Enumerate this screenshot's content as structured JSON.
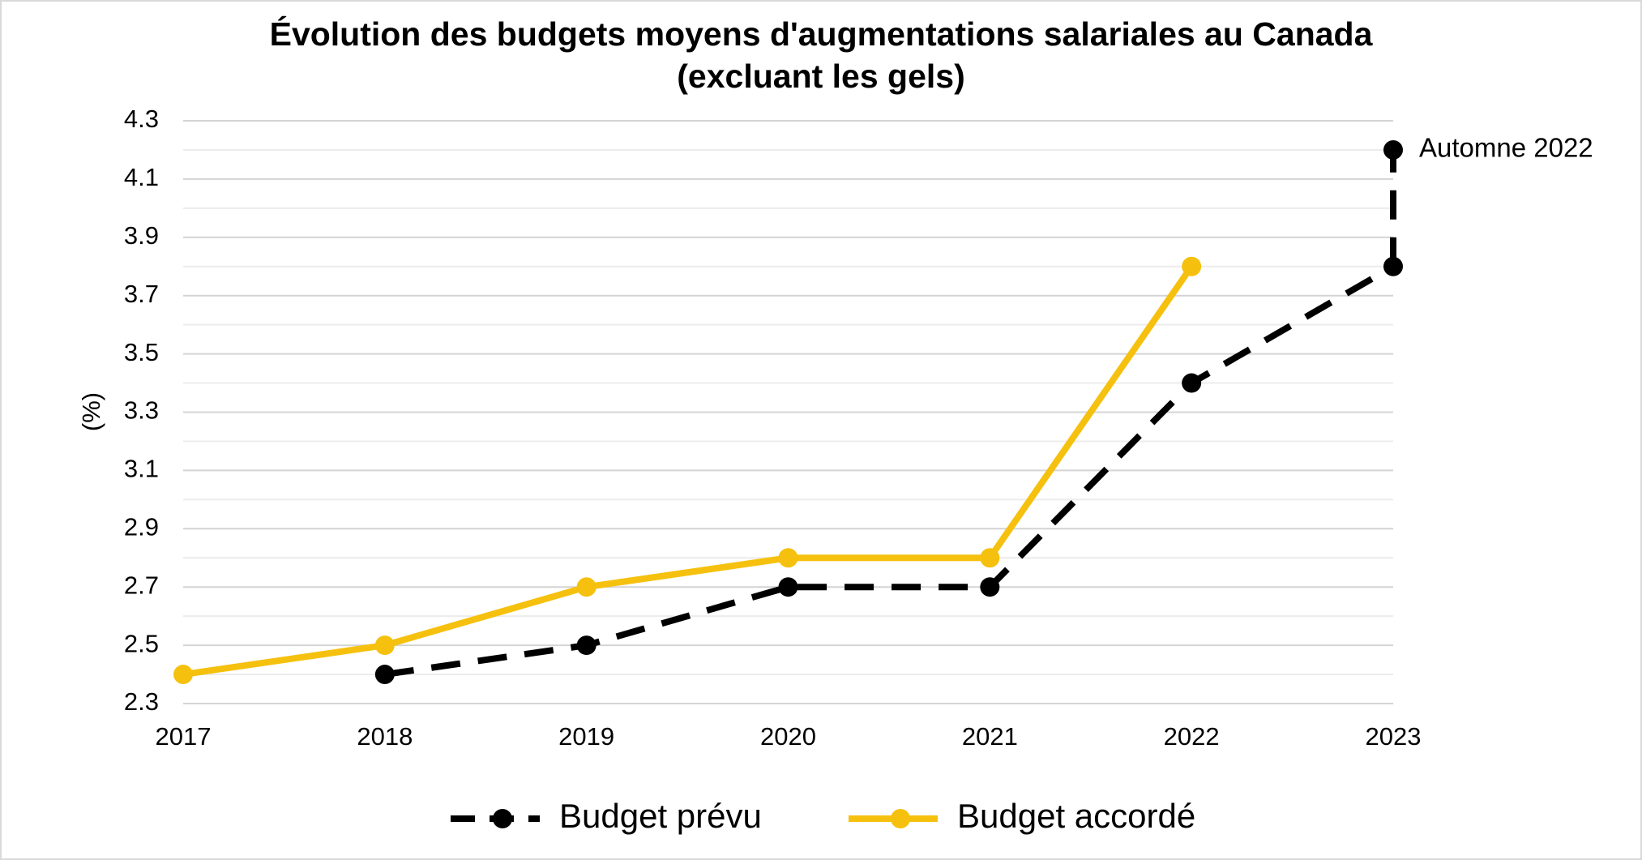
{
  "chart_data": {
    "type": "line",
    "title": [
      "Évolution des budgets moyens d'augmentations salariales au Canada",
      "(excluant les gels)"
    ],
    "y_label": "(%)",
    "x": [
      2017,
      2018,
      2019,
      2020,
      2021,
      2022,
      2023
    ],
    "xlim": [
      2017,
      2023
    ],
    "xticks": [
      2017,
      2018,
      2019,
      2020,
      2021,
      2022,
      2023
    ],
    "ylim": [
      2.3,
      4.3
    ],
    "yticks": [
      2.3,
      2.5,
      2.7,
      2.9,
      3.1,
      3.3,
      3.5,
      3.7,
      3.9,
      4.1,
      4.3
    ],
    "minor_yticks": [
      2.4,
      2.6,
      2.8,
      3.0,
      3.2,
      3.4,
      3.6,
      3.8,
      4.0,
      4.2
    ],
    "grid": true,
    "series": [
      {
        "name": "Budget prévu",
        "color": "#000000",
        "dashed": true,
        "values": [
          null,
          2.4,
          2.5,
          2.7,
          2.7,
          3.4,
          3.8
        ]
      },
      {
        "name": "Budget accordé",
        "color": "#f5c10e",
        "dashed": false,
        "values": [
          2.4,
          2.5,
          2.7,
          2.8,
          2.8,
          3.8,
          null
        ]
      }
    ],
    "annotations": [
      {
        "x": 2023,
        "y": 4.2,
        "label": "Automne 2022",
        "series": 0
      }
    ],
    "legend": "bottom"
  }
}
